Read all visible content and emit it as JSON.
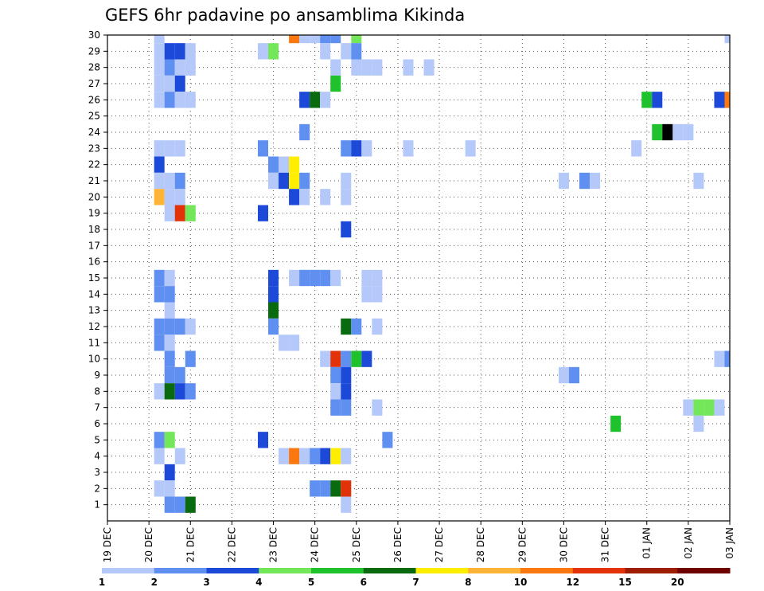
{
  "chart_data": {
    "type": "heatmap",
    "title": "GEFS 6hr padavine po ansamblima Kikinda",
    "x_tick_labels": [
      "19 DEC",
      "20 DEC",
      "21 DEC",
      "22 DEC",
      "23 DEC",
      "24 DEC",
      "25 DEC",
      "26 DEC",
      "27 DEC",
      "28 DEC",
      "29 DEC",
      "30 DEC",
      "31 DEC",
      "01 JAN",
      "02 JAN",
      "03 JAN"
    ],
    "y_tick_labels": [
      "1",
      "2",
      "3",
      "4",
      "5",
      "6",
      "7",
      "8",
      "9",
      "10",
      "11",
      "12",
      "13",
      "14",
      "15",
      "16",
      "17",
      "18",
      "19",
      "20",
      "21",
      "22",
      "23",
      "24",
      "25",
      "26",
      "27",
      "28",
      "29",
      "30"
    ],
    "x_unit": "6-hour step (4 per day, step 0 = 19 DEC 00Z)",
    "y_range": [
      0,
      30
    ],
    "x_range": [
      0,
      60
    ],
    "grid": true,
    "colorbar": {
      "position": "bottom",
      "labels": [
        "1",
        "2",
        "3",
        "4",
        "5",
        "6",
        "7",
        "8",
        "10",
        "12",
        "15",
        "20"
      ],
      "colors": [
        "#b4c8fa",
        "#5f8ff0",
        "#1c49d8",
        "#73e65a",
        "#1fc22d",
        "#0a6a0f",
        "#ffee00",
        "#ffb437",
        "#fa780f",
        "#e1320a",
        "#9e1c00",
        "#6e0000"
      ]
    },
    "cells": [
      [
        5,
        30,
        1
      ],
      [
        5,
        29,
        1
      ],
      [
        5,
        28,
        1
      ],
      [
        5,
        27,
        1
      ],
      [
        5,
        26,
        1
      ],
      [
        5,
        23,
        1
      ],
      [
        5,
        22,
        3
      ],
      [
        5,
        21,
        1
      ],
      [
        5,
        20,
        8
      ],
      [
        5,
        15,
        2
      ],
      [
        5,
        14,
        2
      ],
      [
        5,
        12,
        2
      ],
      [
        5,
        11,
        2
      ],
      [
        5,
        8,
        1
      ],
      [
        5,
        5,
        2
      ],
      [
        5,
        4,
        1
      ],
      [
        5,
        2,
        1
      ],
      [
        6,
        29,
        3
      ],
      [
        6,
        28,
        2
      ],
      [
        6,
        27,
        1
      ],
      [
        6,
        26,
        2
      ],
      [
        6,
        23,
        1
      ],
      [
        6,
        21,
        1
      ],
      [
        6,
        20,
        1
      ],
      [
        6,
        19,
        1
      ],
      [
        6,
        15,
        1
      ],
      [
        6,
        14,
        2
      ],
      [
        6,
        13,
        1
      ],
      [
        6,
        12,
        2
      ],
      [
        6,
        11,
        1
      ],
      [
        6,
        10,
        2
      ],
      [
        6,
        9,
        2
      ],
      [
        6,
        8,
        6
      ],
      [
        6,
        5,
        4
      ],
      [
        6,
        3,
        3
      ],
      [
        6,
        2,
        1
      ],
      [
        6,
        1,
        2
      ],
      [
        7,
        29,
        3
      ],
      [
        7,
        28,
        1
      ],
      [
        7,
        27,
        3
      ],
      [
        7,
        26,
        1
      ],
      [
        7,
        23,
        1
      ],
      [
        7,
        21,
        2
      ],
      [
        7,
        20,
        1
      ],
      [
        7,
        19,
        10
      ],
      [
        7,
        12,
        2
      ],
      [
        7,
        9,
        2
      ],
      [
        7,
        8,
        3
      ],
      [
        7,
        4,
        1
      ],
      [
        7,
        1,
        2
      ],
      [
        8,
        29,
        1
      ],
      [
        8,
        28,
        1
      ],
      [
        8,
        26,
        1
      ],
      [
        8,
        19,
        4
      ],
      [
        8,
        12,
        1
      ],
      [
        8,
        10,
        2
      ],
      [
        8,
        8,
        2
      ],
      [
        8,
        1,
        6
      ],
      [
        15,
        29,
        1
      ],
      [
        15,
        23,
        2
      ],
      [
        15,
        19,
        3
      ],
      [
        15,
        5,
        3
      ],
      [
        16,
        29,
        4
      ],
      [
        16,
        22,
        2
      ],
      [
        16,
        21,
        1
      ],
      [
        16,
        15,
        3
      ],
      [
        16,
        14,
        3
      ],
      [
        16,
        13,
        6
      ],
      [
        16,
        12,
        2
      ],
      [
        17,
        22,
        1
      ],
      [
        17,
        21,
        3
      ],
      [
        17,
        11,
        1
      ],
      [
        17,
        4,
        1
      ],
      [
        18,
        30,
        9
      ],
      [
        18,
        22,
        7
      ],
      [
        18,
        21,
        7
      ],
      [
        18,
        20,
        3
      ],
      [
        18,
        15,
        1
      ],
      [
        18,
        11,
        1
      ],
      [
        18,
        4,
        9
      ],
      [
        19,
        30,
        1
      ],
      [
        19,
        26,
        3
      ],
      [
        19,
        24,
        2
      ],
      [
        19,
        21,
        2
      ],
      [
        19,
        20,
        1
      ],
      [
        19,
        15,
        2
      ],
      [
        19,
        4,
        1
      ],
      [
        20,
        30,
        1
      ],
      [
        20,
        26,
        6
      ],
      [
        20,
        15,
        2
      ],
      [
        20,
        4,
        2
      ],
      [
        20,
        2,
        2
      ],
      [
        21,
        30,
        2
      ],
      [
        21,
        29,
        1
      ],
      [
        21,
        26,
        1
      ],
      [
        21,
        20,
        1
      ],
      [
        21,
        15,
        2
      ],
      [
        21,
        10,
        1
      ],
      [
        21,
        4,
        3
      ],
      [
        21,
        2,
        2
      ],
      [
        22,
        30,
        2
      ],
      [
        22,
        28,
        1
      ],
      [
        22,
        27,
        5
      ],
      [
        22,
        15,
        1
      ],
      [
        22,
        10,
        10
      ],
      [
        22,
        9,
        2
      ],
      [
        22,
        8,
        1
      ],
      [
        22,
        7,
        2
      ],
      [
        22,
        4,
        7
      ],
      [
        22,
        2,
        6
      ],
      [
        23,
        29,
        1
      ],
      [
        23,
        23,
        2
      ],
      [
        23,
        21,
        1
      ],
      [
        23,
        20,
        1
      ],
      [
        23,
        18,
        3
      ],
      [
        23,
        12,
        6
      ],
      [
        23,
        10,
        2
      ],
      [
        23,
        9,
        3
      ],
      [
        23,
        8,
        3
      ],
      [
        23,
        7,
        2
      ],
      [
        23,
        4,
        1
      ],
      [
        23,
        2,
        10
      ],
      [
        23,
        1,
        1
      ],
      [
        24,
        30,
        4
      ],
      [
        24,
        29,
        2
      ],
      [
        24,
        28,
        1
      ],
      [
        24,
        23,
        3
      ],
      [
        24,
        12,
        2
      ],
      [
        24,
        10,
        5
      ],
      [
        25,
        28,
        1
      ],
      [
        25,
        23,
        1
      ],
      [
        25,
        15,
        1
      ],
      [
        25,
        14,
        1
      ],
      [
        25,
        10,
        3
      ],
      [
        26,
        28,
        1
      ],
      [
        26,
        15,
        1
      ],
      [
        26,
        14,
        1
      ],
      [
        26,
        12,
        1
      ],
      [
        26,
        7,
        1
      ],
      [
        27,
        5,
        2
      ],
      [
        29,
        28,
        1
      ],
      [
        29,
        23,
        1
      ],
      [
        31,
        28,
        1
      ],
      [
        35,
        23,
        1
      ],
      [
        44,
        21,
        1
      ],
      [
        44,
        9,
        1
      ],
      [
        45,
        9,
        2
      ],
      [
        46,
        21,
        2
      ],
      [
        47,
        21,
        1
      ],
      [
        49,
        6,
        5
      ],
      [
        51,
        23,
        1
      ],
      [
        52,
        26,
        5
      ],
      [
        53,
        26,
        3
      ],
      [
        53,
        24,
        5
      ],
      [
        54,
        24,
        13
      ],
      [
        55,
        24,
        1
      ],
      [
        56,
        24,
        1
      ],
      [
        56,
        7,
        1
      ],
      [
        57,
        21,
        1
      ],
      [
        57,
        7,
        4
      ],
      [
        57,
        6,
        1
      ],
      [
        58,
        7,
        4
      ],
      [
        59,
        26,
        3
      ],
      [
        59,
        10,
        1
      ],
      [
        59,
        7,
        1
      ],
      [
        60,
        30,
        1
      ],
      [
        60,
        26,
        9
      ],
      [
        60,
        10,
        2
      ]
    ]
  }
}
